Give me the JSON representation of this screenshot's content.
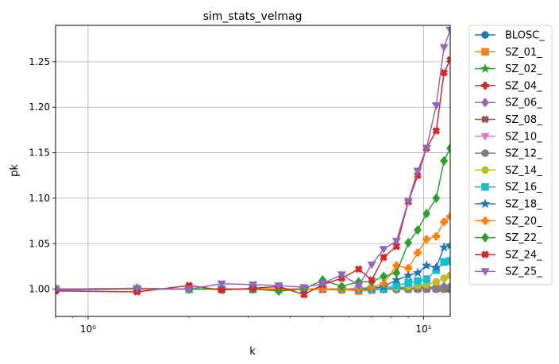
{
  "chart_data": {
    "type": "line",
    "title": "sim_stats_velmag",
    "xlabel": "k",
    "ylabel": "pk",
    "xscale": "log",
    "xlim": [
      0.8,
      12
    ],
    "ylim": [
      0.97,
      1.29
    ],
    "x_major_ticks": [
      {
        "value": 1,
        "label": "10⁰"
      },
      {
        "value": 10,
        "label": "10¹"
      }
    ],
    "y_ticks": [
      {
        "value": 1.0,
        "label": "1.00"
      },
      {
        "value": 1.05,
        "label": "1.05"
      },
      {
        "value": 1.1,
        "label": "1.10"
      },
      {
        "value": 1.15,
        "label": "1.15"
      },
      {
        "value": 1.2,
        "label": "1.20"
      },
      {
        "value": 1.25,
        "label": "1.25"
      }
    ],
    "grid": true,
    "legend_position": "outside-right",
    "series": [
      {
        "name": "BLOSC_",
        "color": "#1f77b4",
        "marker": "circle",
        "points": [
          [
            0.8,
            0.999
          ],
          [
            1.4,
            1.0
          ],
          [
            2.0,
            1.0
          ],
          [
            2.5,
            1.0
          ],
          [
            3.1,
            1.0
          ],
          [
            3.7,
            0.999
          ],
          [
            4.4,
            1.0
          ],
          [
            5.0,
            1.0
          ],
          [
            5.7,
            0.999
          ],
          [
            6.4,
            1.0
          ],
          [
            7.0,
            1.0
          ],
          [
            7.6,
            1.0
          ],
          [
            8.3,
            1.0
          ],
          [
            9.0,
            1.0
          ],
          [
            9.6,
            1.0
          ],
          [
            10.2,
            1.0
          ],
          [
            10.9,
            1.0
          ],
          [
            11.5,
            1.0
          ],
          [
            12.0,
            1.0
          ]
        ]
      },
      {
        "name": "SZ_01_",
        "color": "#ff7f0e",
        "marker": "square",
        "points": [
          [
            0.8,
            1.0
          ],
          [
            1.4,
            1.0
          ],
          [
            2.0,
            1.0
          ],
          [
            2.5,
            1.0
          ],
          [
            3.1,
            1.0
          ],
          [
            3.7,
            1.0
          ],
          [
            4.4,
            1.0
          ],
          [
            5.0,
            1.0
          ],
          [
            5.7,
            1.0
          ],
          [
            6.4,
            0.998
          ],
          [
            7.0,
            0.999
          ],
          [
            7.6,
            1.0
          ],
          [
            8.3,
            1.001
          ],
          [
            9.0,
            1.001
          ],
          [
            9.6,
            1.001
          ],
          [
            10.2,
            1.001
          ],
          [
            10.9,
            1.001
          ],
          [
            11.5,
            1.001
          ],
          [
            12.0,
            1.001
          ]
        ]
      },
      {
        "name": "SZ_02_",
        "color": "#2ca02c",
        "marker": "star",
        "points": [
          [
            0.8,
            1.0
          ],
          [
            1.4,
            1.0
          ],
          [
            2.0,
            1.0
          ],
          [
            2.5,
            1.0
          ],
          [
            3.1,
            1.0
          ],
          [
            3.7,
            1.0
          ],
          [
            4.4,
            1.0
          ],
          [
            5.0,
            1.0
          ],
          [
            5.7,
            1.0
          ],
          [
            6.4,
            1.0
          ],
          [
            7.0,
            1.0
          ],
          [
            7.6,
            1.0
          ],
          [
            8.3,
            1.0
          ],
          [
            9.0,
            1.0
          ],
          [
            9.6,
            1.001
          ],
          [
            10.2,
            1.001
          ],
          [
            10.9,
            1.001
          ],
          [
            11.5,
            1.001
          ],
          [
            12.0,
            1.001
          ]
        ]
      },
      {
        "name": "SZ_04_",
        "color": "#d62728",
        "marker": "plus",
        "points": [
          [
            0.8,
            1.0
          ],
          [
            1.4,
            1.0
          ],
          [
            2.0,
            1.0
          ],
          [
            2.5,
            1.0
          ],
          [
            3.1,
            1.0
          ],
          [
            3.7,
            1.0
          ],
          [
            4.4,
            1.0
          ],
          [
            5.0,
            1.0
          ],
          [
            5.7,
            1.0
          ],
          [
            6.4,
            1.0
          ],
          [
            7.0,
            1.0
          ],
          [
            7.6,
            1.0
          ],
          [
            8.3,
            1.001
          ],
          [
            9.0,
            1.001
          ],
          [
            9.6,
            1.001
          ],
          [
            10.2,
            1.001
          ],
          [
            10.9,
            1.001
          ],
          [
            11.5,
            1.001
          ],
          [
            12.0,
            1.001
          ]
        ]
      },
      {
        "name": "SZ_06_",
        "color": "#9467bd",
        "marker": "diamond",
        "points": [
          [
            0.8,
            1.0
          ],
          [
            1.4,
            1.0
          ],
          [
            2.0,
            1.0
          ],
          [
            2.5,
            1.0
          ],
          [
            3.1,
            1.0
          ],
          [
            3.7,
            1.0
          ],
          [
            4.4,
            1.0
          ],
          [
            5.0,
            1.0
          ],
          [
            5.7,
            1.0
          ],
          [
            6.4,
            1.0
          ],
          [
            7.0,
            1.0
          ],
          [
            7.6,
            1.0
          ],
          [
            8.3,
            1.0
          ],
          [
            9.0,
            1.001
          ],
          [
            9.6,
            1.001
          ],
          [
            10.2,
            1.002
          ],
          [
            10.9,
            1.002
          ],
          [
            11.5,
            1.003
          ],
          [
            12.0,
            1.003
          ]
        ]
      },
      {
        "name": "SZ_08_",
        "color": "#8c564b",
        "marker": "x",
        "points": [
          [
            0.8,
            1.0
          ],
          [
            1.4,
            1.0
          ],
          [
            2.0,
            1.0
          ],
          [
            2.5,
            1.0
          ],
          [
            3.1,
            1.0
          ],
          [
            3.7,
            1.0
          ],
          [
            4.4,
            1.0
          ],
          [
            5.0,
            1.0
          ],
          [
            5.7,
            1.0
          ],
          [
            6.4,
            1.0
          ],
          [
            7.0,
            1.0
          ],
          [
            7.6,
            1.0
          ],
          [
            8.3,
            1.0
          ],
          [
            9.0,
            1.0
          ],
          [
            9.6,
            1.0
          ],
          [
            10.2,
            1.0
          ],
          [
            10.9,
            1.0
          ],
          [
            11.5,
            1.0
          ],
          [
            12.0,
            1.0
          ]
        ]
      },
      {
        "name": "SZ_10_",
        "color": "#e377c2",
        "marker": "triangle-down",
        "points": [
          [
            0.8,
            1.0
          ],
          [
            1.4,
            1.0
          ],
          [
            2.0,
            1.0
          ],
          [
            2.5,
            1.0
          ],
          [
            3.1,
            1.0
          ],
          [
            3.7,
            1.0
          ],
          [
            4.4,
            1.0
          ],
          [
            5.0,
            1.0
          ],
          [
            5.7,
            1.0
          ],
          [
            6.4,
            1.0
          ],
          [
            7.0,
            1.0
          ],
          [
            7.6,
            1.0
          ],
          [
            8.3,
            1.0
          ],
          [
            9.0,
            1.0
          ],
          [
            9.6,
            1.0
          ],
          [
            10.2,
            1.0
          ],
          [
            10.9,
            1.0
          ],
          [
            11.5,
            1.0
          ],
          [
            12.0,
            1.001
          ]
        ]
      },
      {
        "name": "SZ_12_",
        "color": "#7f7f7f",
        "marker": "circle",
        "points": [
          [
            0.8,
            1.0
          ],
          [
            1.4,
            1.0
          ],
          [
            2.0,
            1.0
          ],
          [
            2.5,
            1.0
          ],
          [
            3.1,
            1.0
          ],
          [
            3.7,
            1.0
          ],
          [
            4.4,
            1.0
          ],
          [
            5.0,
            1.0
          ],
          [
            5.7,
            1.0
          ],
          [
            6.4,
            1.0
          ],
          [
            7.0,
            1.0
          ],
          [
            7.6,
            1.0
          ],
          [
            8.3,
            1.0
          ],
          [
            9.0,
            1.0
          ],
          [
            9.6,
            1.001
          ],
          [
            10.2,
            1.001
          ],
          [
            10.9,
            1.001
          ],
          [
            11.5,
            1.001
          ],
          [
            12.0,
            1.002
          ]
        ]
      },
      {
        "name": "SZ_14_",
        "color": "#bcbd22",
        "marker": "circle",
        "points": [
          [
            0.8,
            1.0
          ],
          [
            1.4,
            1.0
          ],
          [
            2.0,
            1.0
          ],
          [
            2.5,
            1.0
          ],
          [
            3.1,
            1.0
          ],
          [
            3.7,
            1.0
          ],
          [
            4.4,
            1.0
          ],
          [
            5.0,
            1.0
          ],
          [
            5.7,
            1.0
          ],
          [
            6.4,
            1.0
          ],
          [
            7.0,
            1.0
          ],
          [
            7.6,
            1.001
          ],
          [
            8.3,
            1.002
          ],
          [
            9.0,
            1.003
          ],
          [
            9.6,
            1.004
          ],
          [
            10.2,
            1.005
          ],
          [
            10.9,
            1.008
          ],
          [
            11.5,
            1.012
          ],
          [
            12.0,
            1.015
          ]
        ]
      },
      {
        "name": "SZ_16_",
        "color": "#17becf",
        "marker": "square",
        "points": [
          [
            0.8,
            1.0
          ],
          [
            1.4,
            1.0
          ],
          [
            2.0,
            1.0
          ],
          [
            2.5,
            1.0
          ],
          [
            3.1,
            1.0
          ],
          [
            3.7,
            1.0
          ],
          [
            4.4,
            1.0
          ],
          [
            5.0,
            1.0
          ],
          [
            5.7,
            1.0
          ],
          [
            6.4,
            1.0
          ],
          [
            7.0,
            1.0
          ],
          [
            7.6,
            1.001
          ],
          [
            8.3,
            1.004
          ],
          [
            9.0,
            1.007
          ],
          [
            9.6,
            1.009
          ],
          [
            10.2,
            1.011
          ],
          [
            10.9,
            1.021
          ],
          [
            11.5,
            1.03
          ],
          [
            12.0,
            1.031
          ]
        ]
      },
      {
        "name": "SZ_18_",
        "color": "#1f77b4",
        "marker": "star",
        "points": [
          [
            0.8,
            1.0
          ],
          [
            1.4,
            1.0
          ],
          [
            2.0,
            1.0
          ],
          [
            2.5,
            1.0
          ],
          [
            3.1,
            1.0
          ],
          [
            3.7,
            1.0
          ],
          [
            4.4,
            1.0
          ],
          [
            5.0,
            1.0
          ],
          [
            5.7,
            1.0
          ],
          [
            6.4,
            1.0
          ],
          [
            7.0,
            1.001
          ],
          [
            7.6,
            1.003
          ],
          [
            8.3,
            1.01
          ],
          [
            9.0,
            1.015
          ],
          [
            9.6,
            1.018
          ],
          [
            10.2,
            1.026
          ],
          [
            10.9,
            1.024
          ],
          [
            11.5,
            1.046
          ],
          [
            12.0,
            1.048
          ]
        ]
      },
      {
        "name": "SZ_20_",
        "color": "#ff7f0e",
        "marker": "plus",
        "points": [
          [
            0.8,
            1.0
          ],
          [
            1.4,
            1.0
          ],
          [
            2.0,
            1.0
          ],
          [
            2.5,
            1.0
          ],
          [
            3.1,
            1.0
          ],
          [
            3.7,
            1.0
          ],
          [
            4.4,
            1.0
          ],
          [
            5.0,
            1.0
          ],
          [
            5.7,
            1.0
          ],
          [
            6.4,
            1.001
          ],
          [
            7.0,
            1.002
          ],
          [
            7.6,
            1.006
          ],
          [
            8.3,
            1.026
          ],
          [
            9.0,
            1.023
          ],
          [
            9.6,
            1.04
          ],
          [
            10.2,
            1.055
          ],
          [
            10.9,
            1.058
          ],
          [
            11.5,
            1.074
          ],
          [
            12.0,
            1.08
          ]
        ]
      },
      {
        "name": "SZ_22_",
        "color": "#2ca02c",
        "marker": "diamond",
        "points": [
          [
            0.8,
            1.0
          ],
          [
            1.4,
            1.001
          ],
          [
            2.0,
            1.0
          ],
          [
            2.5,
            1.0
          ],
          [
            3.1,
            1.0
          ],
          [
            3.7,
            0.998
          ],
          [
            4.4,
            1.0
          ],
          [
            5.0,
            1.01
          ],
          [
            5.7,
            1.003
          ],
          [
            6.4,
            1.008
          ],
          [
            7.0,
            1.008
          ],
          [
            7.6,
            1.014
          ],
          [
            8.3,
            1.018
          ],
          [
            9.0,
            1.051
          ],
          [
            9.6,
            1.065
          ],
          [
            10.2,
            1.083
          ],
          [
            10.9,
            1.1
          ],
          [
            11.5,
            1.141
          ],
          [
            12.0,
            1.155
          ]
        ]
      },
      {
        "name": "SZ_24_",
        "color": "#d62728",
        "marker": "x",
        "points": [
          [
            0.8,
            0.998
          ],
          [
            1.4,
            0.997
          ],
          [
            2.0,
            1.004
          ],
          [
            2.5,
            0.999
          ],
          [
            3.1,
            1.001
          ],
          [
            3.7,
            1.003
          ],
          [
            4.4,
            0.994
          ],
          [
            5.0,
            1.005
          ],
          [
            5.7,
            1.012
          ],
          [
            6.4,
            1.022
          ],
          [
            7.0,
            1.01
          ],
          [
            7.6,
            1.035
          ],
          [
            8.3,
            1.047
          ],
          [
            9.0,
            1.096
          ],
          [
            9.6,
            1.125
          ],
          [
            10.2,
            1.155
          ],
          [
            10.9,
            1.174
          ],
          [
            11.5,
            1.238
          ],
          [
            12.0,
            1.252
          ]
        ]
      },
      {
        "name": "SZ_25_",
        "color": "#9467bd",
        "marker": "triangle-down",
        "points": [
          [
            0.8,
            1.0
          ],
          [
            1.4,
            1.001
          ],
          [
            2.0,
            1.0
          ],
          [
            2.5,
            1.006
          ],
          [
            3.1,
            1.005
          ],
          [
            3.7,
            1.004
          ],
          [
            4.4,
            1.002
          ],
          [
            5.0,
            1.006
          ],
          [
            5.7,
            1.016
          ],
          [
            6.4,
            1.004
          ],
          [
            7.0,
            1.027
          ],
          [
            7.6,
            1.044
          ],
          [
            8.3,
            1.053
          ],
          [
            9.0,
            1.097
          ],
          [
            9.6,
            1.13
          ],
          [
            10.2,
            1.155
          ],
          [
            10.9,
            1.202
          ],
          [
            11.5,
            1.266
          ],
          [
            12.0,
            1.285
          ]
        ]
      }
    ]
  }
}
